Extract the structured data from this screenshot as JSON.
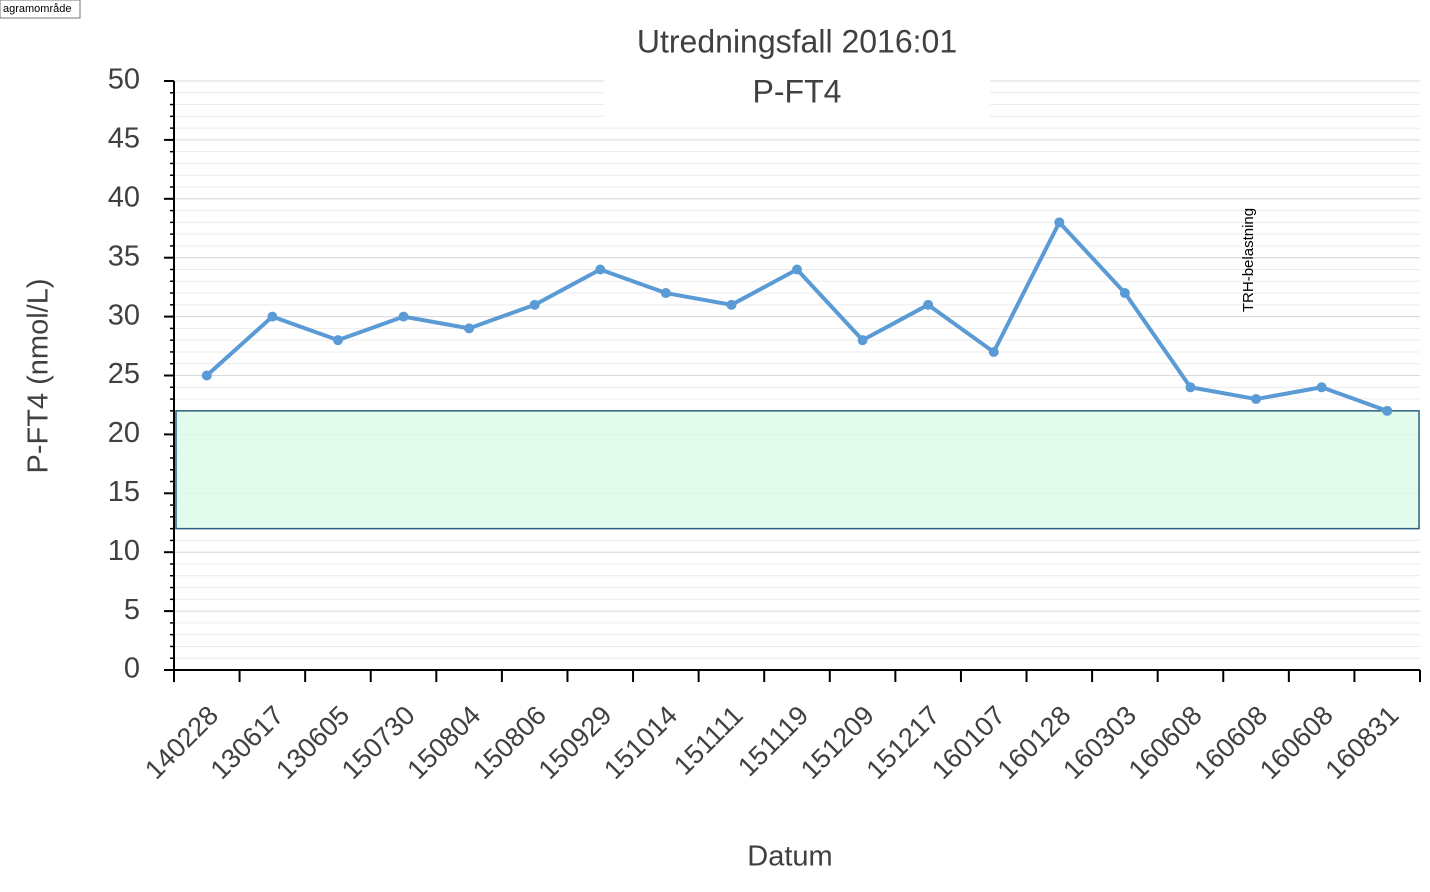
{
  "tooltip": "agramområde",
  "chart_data": {
    "type": "line",
    "title": "Utredningsfall 2016:01",
    "subtitle": "P-FT4",
    "x_label": "Datum",
    "y_label": "P-FT4 (nmol/L)",
    "categories": [
      "140228",
      "130617",
      "130605",
      "150730",
      "150804",
      "150806",
      "150929",
      "151014",
      "151111",
      "151119",
      "151209",
      "151217",
      "160107",
      "160128",
      "160303",
      "160608",
      "160608",
      "160608",
      "160831"
    ],
    "series": [
      {
        "name": "P-FT4",
        "color": "#5b9bd5",
        "values": [
          25,
          30,
          28,
          30,
          29,
          31,
          34,
          32,
          31,
          34,
          28,
          31,
          27,
          38,
          32,
          24,
          23,
          24,
          22
        ]
      }
    ],
    "reference_range": [
      12,
      22
    ],
    "reference_color": "#dcfce9",
    "annotation": "TRH-belastning",
    "ylim": [
      0,
      50
    ],
    "yticks": [
      0,
      5,
      10,
      15,
      20,
      25,
      30,
      35,
      40,
      45,
      50
    ],
    "grid": true,
    "minor_grid": true
  }
}
